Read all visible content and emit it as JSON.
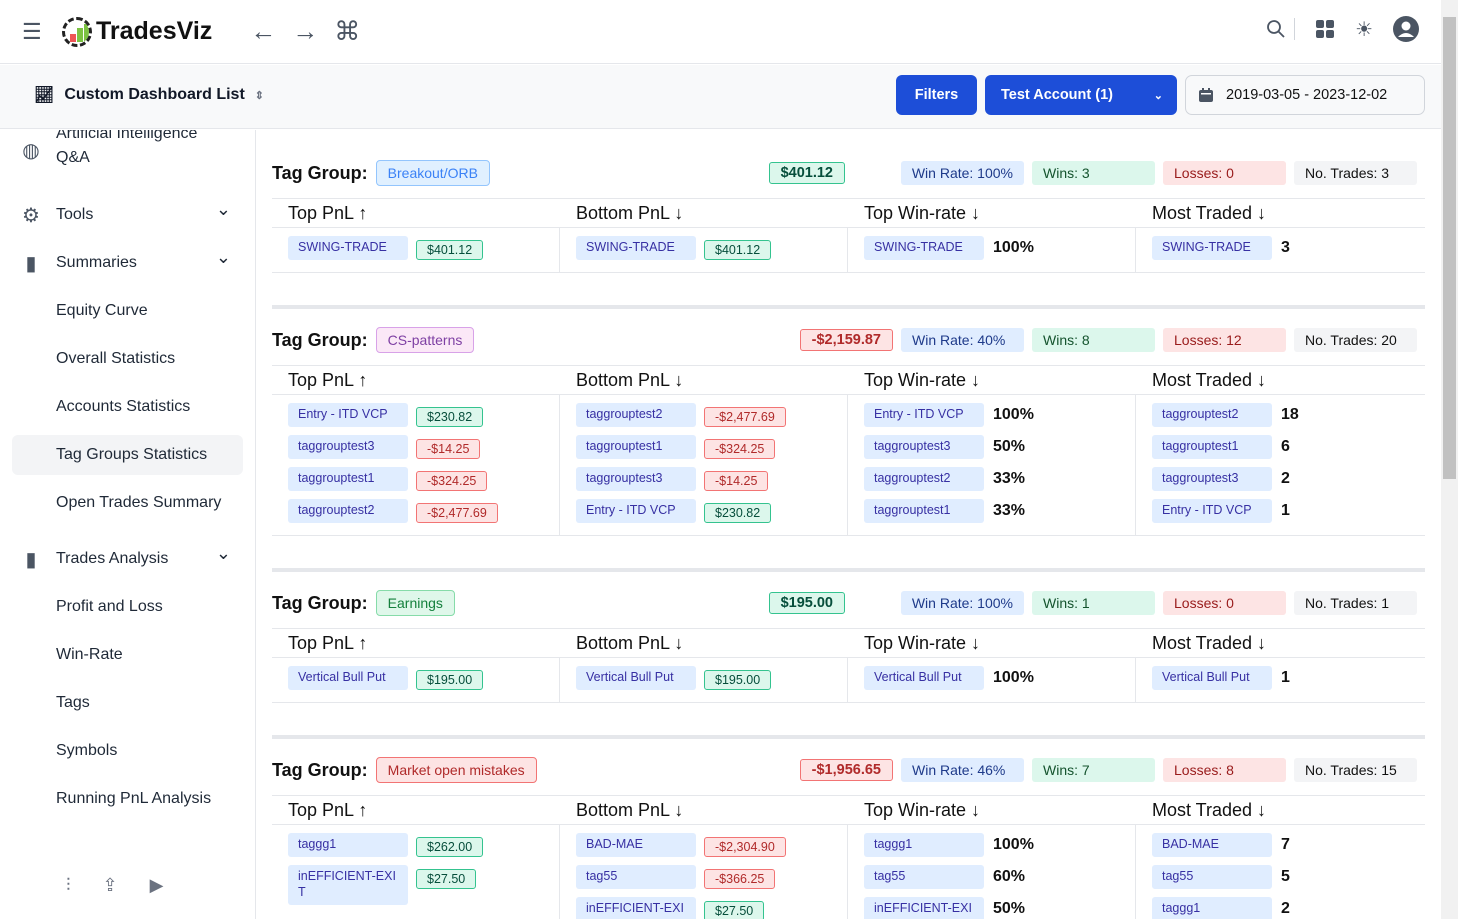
{
  "app": {
    "name": "TradesViz"
  },
  "subheader": {
    "dashboard_label": "Custom Dashboard List",
    "filters": "Filters",
    "account": "Test Account (1)",
    "date_range": "2019-03-05 - 2023-12-02"
  },
  "sidebar": {
    "items": [
      {
        "label": "Artificial Intelligence Q&A",
        "icon": "brain-icon"
      },
      {
        "label": "Tools",
        "icon": "gear-icon",
        "chevron": true
      },
      {
        "label": "Summaries",
        "icon": "report-icon",
        "chevron": true
      },
      {
        "label": "Equity Curve"
      },
      {
        "label": "Overall Statistics"
      },
      {
        "label": "Accounts Statistics"
      },
      {
        "label": "Tag Groups Statistics",
        "active": true
      },
      {
        "label": "Open Trades Summary"
      },
      {
        "label": "Trades Analysis",
        "icon": "chart-icon",
        "chevron": true
      },
      {
        "label": "Profit and Loss"
      },
      {
        "label": "Win-Rate"
      },
      {
        "label": "Tags"
      },
      {
        "label": "Symbols"
      },
      {
        "label": "Running PnL Analysis"
      }
    ]
  },
  "labels": {
    "tag_group": "Tag Group:",
    "cols": [
      "Top PnL ↑",
      "Bottom PnL ↓",
      "Top Win-rate ↓",
      "Most Traded ↓"
    ]
  },
  "colors": {
    "primary": "#1d4ed8",
    "positive": "#34c38f",
    "negative": "#f27474"
  },
  "groups": [
    {
      "name": "Breakout/ORB",
      "color": "blue",
      "pnl": "$401.12",
      "pnl_sign": "pos",
      "win_rate": "Win Rate: 100%",
      "wins": "Wins: 3",
      "losses": "Losses: 0",
      "trades": "No. Trades: 3",
      "top": [
        [
          "SWING-TRADE",
          "$401.12",
          "pos"
        ]
      ],
      "bottom": [
        [
          "SWING-TRADE",
          "$401.12",
          "pos"
        ]
      ],
      "winrate": [
        [
          "SWING-TRADE",
          "100%"
        ]
      ],
      "most": [
        [
          "SWING-TRADE",
          "3"
        ]
      ]
    },
    {
      "name": "CS-patterns",
      "color": "purple",
      "pnl": "-$2,159.87",
      "pnl_sign": "neg",
      "win_rate": "Win Rate: 40%",
      "wins": "Wins: 8",
      "losses": "Losses: 12",
      "trades": "No. Trades: 20",
      "top": [
        [
          "Entry - ITD VCP",
          "$230.82",
          "pos"
        ],
        [
          "taggrouptest3",
          "-$14.25",
          "neg"
        ],
        [
          "taggrouptest1",
          "-$324.25",
          "neg"
        ],
        [
          "taggrouptest2",
          "-$2,477.69",
          "neg"
        ]
      ],
      "bottom": [
        [
          "taggrouptest2",
          "-$2,477.69",
          "neg"
        ],
        [
          "taggrouptest1",
          "-$324.25",
          "neg"
        ],
        [
          "taggrouptest3",
          "-$14.25",
          "neg"
        ],
        [
          "Entry - ITD VCP",
          "$230.82",
          "pos"
        ]
      ],
      "winrate": [
        [
          "Entry - ITD VCP",
          "100%"
        ],
        [
          "taggrouptest3",
          "50%"
        ],
        [
          "taggrouptest2",
          "33%"
        ],
        [
          "taggrouptest1",
          "33%"
        ]
      ],
      "most": [
        [
          "taggrouptest2",
          "18"
        ],
        [
          "taggrouptest1",
          "6"
        ],
        [
          "taggrouptest3",
          "2"
        ],
        [
          "Entry - ITD VCP",
          "1"
        ]
      ]
    },
    {
      "name": "Earnings",
      "color": "green",
      "pnl": "$195.00",
      "pnl_sign": "pos",
      "win_rate": "Win Rate: 100%",
      "wins": "Wins: 1",
      "losses": "Losses: 0",
      "trades": "No. Trades: 1",
      "top": [
        [
          "Vertical Bull Put",
          "$195.00",
          "pos"
        ]
      ],
      "bottom": [
        [
          "Vertical Bull Put",
          "$195.00",
          "pos"
        ]
      ],
      "winrate": [
        [
          "Vertical Bull Put",
          "100%"
        ]
      ],
      "most": [
        [
          "Vertical Bull Put",
          "1"
        ]
      ]
    },
    {
      "name": "Market open mistakes",
      "color": "red",
      "pnl": "-$1,956.65",
      "pnl_sign": "neg",
      "win_rate": "Win Rate: 46%",
      "wins": "Wins: 7",
      "losses": "Losses: 8",
      "trades": "No. Trades: 15",
      "top": [
        [
          "taggg1",
          "$262.00",
          "pos"
        ],
        [
          "inEFFICIENT-EXIT",
          "$27.50",
          "pos"
        ]
      ],
      "bottom": [
        [
          "BAD-MAE",
          "-$2,304.90",
          "neg"
        ],
        [
          "tag55",
          "-$366.25",
          "neg"
        ],
        [
          "inEFFICIENT-EXIT",
          "$27.50",
          "pos"
        ]
      ],
      "winrate": [
        [
          "taggg1",
          "100%"
        ],
        [
          "tag55",
          "60%"
        ],
        [
          "inEFFICIENT-EXIT",
          "50%"
        ]
      ],
      "most": [
        [
          "BAD-MAE",
          "7"
        ],
        [
          "tag55",
          "5"
        ],
        [
          "taggg1",
          "2"
        ]
      ]
    }
  ]
}
